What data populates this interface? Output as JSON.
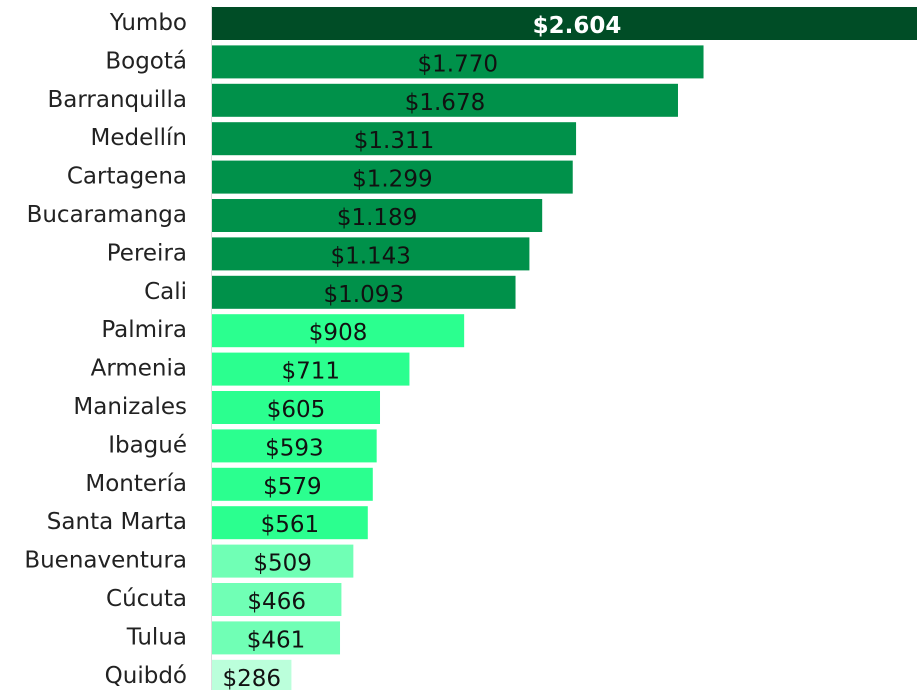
{
  "chart_data": {
    "type": "bar",
    "orientation": "horizontal",
    "categories": [
      "Yumbo",
      "Bogotá",
      "Barranquilla",
      "Medellín",
      "Cartagena",
      "Bucaramanga",
      "Pereira",
      "Cali",
      "Palmira",
      "Armenia",
      "Manizales",
      "Ibagué",
      "Montería",
      "Santa Marta",
      "Buenaventura",
      "Cúcuta",
      "Tulua",
      "Quibdó"
    ],
    "values": [
      2604,
      1770,
      1678,
      1311,
      1299,
      1189,
      1143,
      1093,
      908,
      711,
      605,
      593,
      579,
      561,
      509,
      466,
      461,
      286
    ],
    "value_labels": [
      "$2.604",
      "$1.770",
      "$1.678",
      "$1.311",
      "$1.299",
      "$1.189",
      "$1.143",
      "$1.093",
      "$908",
      "$711",
      "$605",
      "$593",
      "$579",
      "$561",
      "$509",
      "$466",
      "$461",
      "$286"
    ],
    "colors": [
      "#004d26",
      "#00914a",
      "#00914a",
      "#00914a",
      "#00914a",
      "#00914a",
      "#00914a",
      "#00914a",
      "#2bff8f",
      "#2bff8f",
      "#2bff8f",
      "#2bff8f",
      "#2bff8f",
      "#2bff8f",
      "#70ffb5",
      "#70ffb5",
      "#70ffb5",
      "#bbffdb"
    ]
  }
}
